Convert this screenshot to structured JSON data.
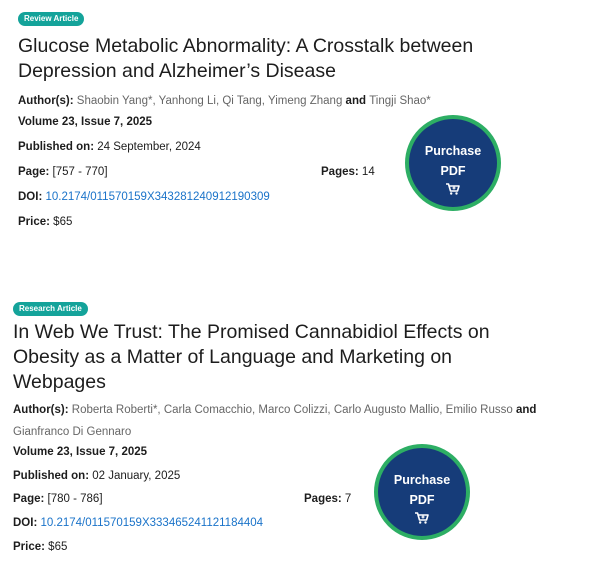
{
  "articles": [
    {
      "badge": "Review Article",
      "title_line1": "Glucose Metabolic Abnormality: A Crosstalk between",
      "title_line2": "Depression and Alzheimer’s Disease",
      "title_line3": "",
      "authors_label": "Author(s):",
      "authors": "Shaobin Yang*, Yanhong Li, Qi Tang, Yimeng Zhang",
      "authors_and": "and",
      "authors_last": "Tingji Shao*",
      "authors_line2": "",
      "volume": "Volume 23, Issue 7, 2025",
      "published_label": "Published on:",
      "published": "24 September, 2024",
      "page_label": "Page:",
      "page_range": "[757 - 770]",
      "pages_label": "Pages:",
      "pages": "14",
      "doi_label": "DOI:",
      "doi": "10.2174/011570159X343281240912190309",
      "price_label": "Price:",
      "price": "$65",
      "purchase_line1": "Purchase",
      "purchase_line2": "PDF",
      "cart_icon": "cart-icon"
    },
    {
      "badge": "Research Article",
      "title_line1": "In Web We Trust: The Promised Cannabidiol Effects on",
      "title_line2": "Obesity as a Matter of Language and Marketing on",
      "title_line3": "Webpages",
      "authors_label": "Author(s):",
      "authors": "Roberta Roberti*, Carla Comacchio, Marco Colizzi, Carlo Augusto Mallio, Emilio Russo",
      "authors_and": "and",
      "authors_last": "",
      "authors_line2": "Gianfranco Di Gennaro",
      "volume": "Volume 23, Issue 7, 2025",
      "published_label": "Published on:",
      "published": "02 January, 2025",
      "page_label": "Page:",
      "page_range": "[780 - 786]",
      "pages_label": "Pages:",
      "pages": "7",
      "doi_label": "DOI:",
      "doi": "10.2174/011570159X333465241121184404",
      "price_label": "Price:",
      "price": "$65",
      "purchase_line1": "Purchase",
      "purchase_line2": "PDF",
      "cart_icon": "cart-icon"
    }
  ],
  "colors": {
    "badge": "#14a39a",
    "link": "#1a73c9",
    "purchase_bg": "#163c79",
    "purchase_ring": "#2dae64"
  }
}
